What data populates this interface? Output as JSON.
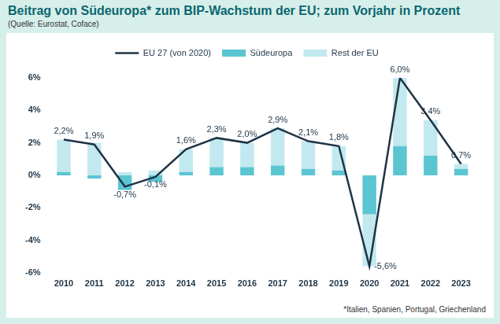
{
  "chart_data": {
    "type": "bar",
    "title": "Beitrag von Südeuropa* zum BIP-Wachstum der EU; zum Vorjahr in Prozent",
    "subtitle": "(Quelle: Eurostat, Coface)",
    "footnote": "*Italien, Spanien, Portugal, Griechenland",
    "categories": [
      "2010",
      "2011",
      "2012",
      "2013",
      "2014",
      "2015",
      "2016",
      "2017",
      "2018",
      "2019",
      "2020",
      "2021",
      "2022",
      "2023"
    ],
    "series": [
      {
        "name": "Südeuropa",
        "type": "bar",
        "color": "#5bc5d2",
        "values": [
          0.2,
          -0.2,
          -0.9,
          -0.4,
          0.2,
          0.5,
          0.5,
          0.6,
          0.4,
          0.3,
          -2.4,
          1.8,
          1.2,
          0.4
        ]
      },
      {
        "name": "Rest der EU",
        "type": "bar",
        "color": "#c2e9ef",
        "values": [
          2.0,
          2.0,
          0.2,
          0.3,
          1.4,
          1.8,
          1.5,
          2.3,
          1.7,
          1.5,
          -3.2,
          4.2,
          2.2,
          0.3
        ]
      },
      {
        "name": "EU 27 (von 2020)",
        "type": "line",
        "color": "#1e3446",
        "data_labels": true,
        "values": [
          2.2,
          1.9,
          -0.7,
          -0.1,
          1.6,
          2.3,
          2.0,
          2.9,
          2.1,
          1.8,
          -5.6,
          6.0,
          3.4,
          0.7
        ],
        "value_labels": [
          "2,2%",
          "1,9%",
          "-0,7%",
          "-0,1%",
          "1,6%",
          "2,3%",
          "2,0%",
          "2,9%",
          "2,1%",
          "1,8%",
          "-5,6%",
          "6,0%",
          "3,4%",
          "0,7%"
        ]
      }
    ],
    "stacked": true,
    "ylim": [
      -6,
      6
    ],
    "yticks": [
      {
        "value": -6,
        "label": "-6%"
      },
      {
        "value": -4,
        "label": "-4%"
      },
      {
        "value": -2,
        "label": "-2%"
      },
      {
        "value": 0,
        "label": "0%"
      },
      {
        "value": 2,
        "label": "2%"
      },
      {
        "value": 4,
        "label": "4%"
      },
      {
        "value": 6,
        "label": "6%"
      }
    ],
    "grid": false,
    "legend": "top"
  }
}
